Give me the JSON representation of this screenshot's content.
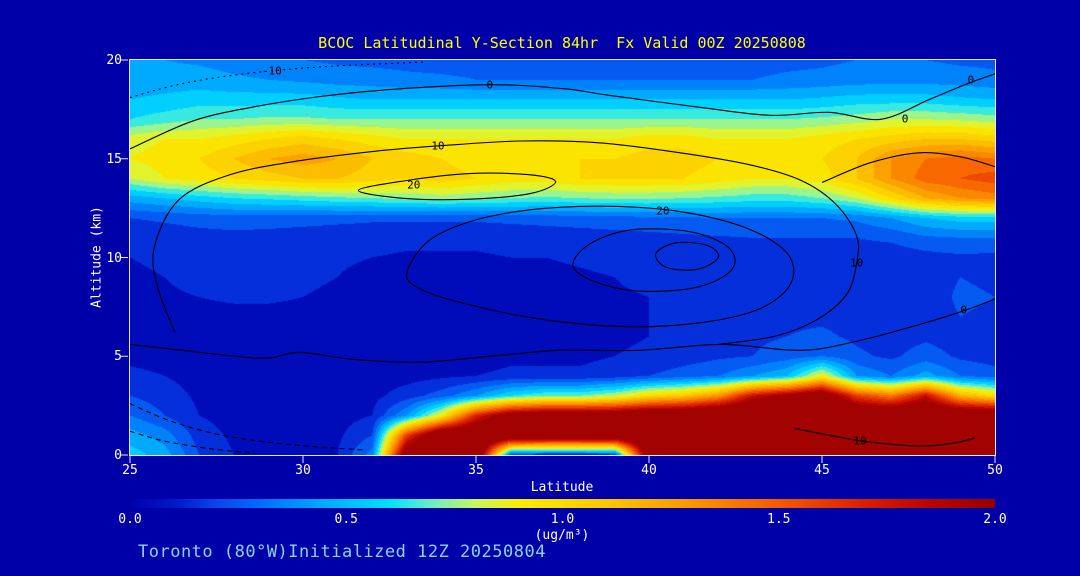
{
  "title": "BCOC Latitudinal Y-Section 84hr  Fx Valid 00Z 20250808",
  "caption": "Toronto (80°W)Initialized 12Z 20250804",
  "colors": {
    "background": "#0000a8",
    "title_text": "#ffff00",
    "axis_text": "#ffffff",
    "caption_text": "#85d6f2",
    "contour_line": "#000000",
    "surface_max_fill": "#960000"
  },
  "axes": {
    "x": {
      "label": "Latitude",
      "min": 25,
      "max": 50,
      "ticks": [
        25,
        30,
        35,
        40,
        45,
        50
      ]
    },
    "y": {
      "label": "Altitude (km)",
      "min": 0,
      "max": 20,
      "ticks": [
        0,
        5,
        10,
        15,
        20
      ]
    }
  },
  "colorbar": {
    "min": 0,
    "max": 2,
    "units": "(ug/m³)",
    "ticks": [
      {
        "label": "0.0",
        "value": 0
      },
      {
        "label": "0.5",
        "value": 0.5
      },
      {
        "label": "1.0",
        "value": 1
      },
      {
        "label": "1.5",
        "value": 1.5
      },
      {
        "label": "2.0",
        "value": 2
      }
    ]
  },
  "chart_data": {
    "type": "heatmap",
    "title": "BCOC Latitudinal Y-Section 84hr  Fx Valid 00Z 20250808",
    "x_label": "Latitude",
    "y_label": "Altitude (km)",
    "x_range": [
      25,
      50
    ],
    "y_range": [
      0,
      20
    ],
    "fill_units": "ug/m3",
    "fill_range": [
      0,
      2
    ],
    "lat": [
      25,
      26,
      27,
      28,
      29,
      30,
      31,
      32,
      33,
      34,
      35,
      36,
      37,
      38,
      39,
      40,
      41,
      42,
      43,
      44,
      45,
      46,
      47,
      48,
      49,
      50
    ],
    "alt_km": [
      0,
      1,
      2,
      3,
      4,
      5,
      6,
      7,
      8,
      9,
      10,
      11,
      12,
      13,
      14,
      15,
      16,
      17,
      18,
      19,
      20
    ],
    "values": [
      [
        0.55,
        0.45,
        0.2,
        0.1,
        0.08,
        0.08,
        0.1,
        0.35,
        2.2,
        2.3,
        2.3,
        0.2,
        0.12,
        0.12,
        0.15,
        2.2,
        2.4,
        2.4,
        2.4,
        2.5,
        2.4,
        2.4,
        2.3,
        2.3,
        2.3,
        2.3
      ],
      [
        0.45,
        0.35,
        0.15,
        0.08,
        0.06,
        0.06,
        0.08,
        0.2,
        1.6,
        2.3,
        2.3,
        2.3,
        2.3,
        2.3,
        2.3,
        2.3,
        2.4,
        2.4,
        2.4,
        2.5,
        2.5,
        2.4,
        2.3,
        2.3,
        2.3,
        2.3
      ],
      [
        0.3,
        0.2,
        0.1,
        0.06,
        0.05,
        0.05,
        0.06,
        0.1,
        0.4,
        0.9,
        1.7,
        2.1,
        2.2,
        2.2,
        2.2,
        2.3,
        2.3,
        2.4,
        2.4,
        2.4,
        2.4,
        2.3,
        2.3,
        2.3,
        2.3,
        2.3
      ],
      [
        0.2,
        0.15,
        0.08,
        0.05,
        0.04,
        0.04,
        0.05,
        0.07,
        0.15,
        0.25,
        0.4,
        0.6,
        0.7,
        0.7,
        0.8,
        1.0,
        1.1,
        1.3,
        1.8,
        2.0,
        2.2,
        1.6,
        1.4,
        1.8,
        1.2,
        1.0
      ],
      [
        0.12,
        0.1,
        0.06,
        0.04,
        0.03,
        0.03,
        0.04,
        0.05,
        0.06,
        0.08,
        0.1,
        0.12,
        0.12,
        0.12,
        0.15,
        0.2,
        0.25,
        0.3,
        0.4,
        0.5,
        0.9,
        0.4,
        0.3,
        0.45,
        0.3,
        0.25
      ],
      [
        0.08,
        0.07,
        0.05,
        0.03,
        0.03,
        0.03,
        0.03,
        0.04,
        0.05,
        0.05,
        0.06,
        0.08,
        0.08,
        0.08,
        0.1,
        0.12,
        0.15,
        0.18,
        0.2,
        0.25,
        0.3,
        0.22,
        0.18,
        0.25,
        0.18,
        0.15
      ],
      [
        0.06,
        0.06,
        0.05,
        0.04,
        0.04,
        0.04,
        0.04,
        0.04,
        0.05,
        0.05,
        0.05,
        0.06,
        0.06,
        0.07,
        0.08,
        0.1,
        0.12,
        0.15,
        0.18,
        0.2,
        0.22,
        0.18,
        0.15,
        0.18,
        0.15,
        0.12
      ],
      [
        0.06,
        0.06,
        0.06,
        0.06,
        0.06,
        0.06,
        0.05,
        0.05,
        0.05,
        0.05,
        0.05,
        0.06,
        0.06,
        0.07,
        0.08,
        0.1,
        0.12,
        0.15,
        0.17,
        0.18,
        0.18,
        0.16,
        0.14,
        0.15,
        0.2,
        0.18
      ],
      [
        0.07,
        0.08,
        0.1,
        0.12,
        0.12,
        0.1,
        0.08,
        0.06,
        0.06,
        0.06,
        0.06,
        0.06,
        0.07,
        0.08,
        0.09,
        0.1,
        0.12,
        0.15,
        0.16,
        0.17,
        0.17,
        0.15,
        0.13,
        0.14,
        0.22,
        0.2
      ],
      [
        0.08,
        0.1,
        0.14,
        0.16,
        0.15,
        0.12,
        0.1,
        0.08,
        0.07,
        0.07,
        0.07,
        0.07,
        0.08,
        0.09,
        0.1,
        0.12,
        0.14,
        0.16,
        0.17,
        0.17,
        0.16,
        0.14,
        0.13,
        0.15,
        0.2,
        0.18
      ],
      [
        0.1,
        0.12,
        0.15,
        0.17,
        0.16,
        0.13,
        0.11,
        0.1,
        0.09,
        0.09,
        0.09,
        0.1,
        0.1,
        0.11,
        0.12,
        0.14,
        0.16,
        0.17,
        0.18,
        0.18,
        0.17,
        0.15,
        0.14,
        0.16,
        0.18,
        0.17
      ],
      [
        0.12,
        0.14,
        0.16,
        0.17,
        0.16,
        0.15,
        0.14,
        0.13,
        0.12,
        0.12,
        0.12,
        0.13,
        0.14,
        0.15,
        0.16,
        0.17,
        0.18,
        0.19,
        0.2,
        0.2,
        0.2,
        0.2,
        0.22,
        0.28,
        0.3,
        0.3
      ],
      [
        0.2,
        0.22,
        0.24,
        0.25,
        0.25,
        0.24,
        0.23,
        0.22,
        0.22,
        0.22,
        0.22,
        0.23,
        0.24,
        0.25,
        0.26,
        0.27,
        0.28,
        0.3,
        0.3,
        0.3,
        0.3,
        0.32,
        0.4,
        0.5,
        0.55,
        0.55
      ],
      [
        0.45,
        0.5,
        0.55,
        0.6,
        0.62,
        0.65,
        0.68,
        0.7,
        0.72,
        0.75,
        0.72,
        0.7,
        0.68,
        0.7,
        0.72,
        0.72,
        0.7,
        0.68,
        0.65,
        0.65,
        0.7,
        0.8,
        1.0,
        1.2,
        1.3,
        1.35
      ],
      [
        0.8,
        0.9,
        0.95,
        1.0,
        1.05,
        1.1,
        1.1,
        1.05,
        1.0,
        1.05,
        1.0,
        0.95,
        0.95,
        1.0,
        1.0,
        1.0,
        1.0,
        0.95,
        0.9,
        0.9,
        0.95,
        1.1,
        1.3,
        1.45,
        1.5,
        1.55
      ],
      [
        0.9,
        0.95,
        1.0,
        1.1,
        1.2,
        1.25,
        1.2,
        1.1,
        1.05,
        1.0,
        0.95,
        0.95,
        1.0,
        1.0,
        1.0,
        1.05,
        1.05,
        1.0,
        0.95,
        0.95,
        1.0,
        1.1,
        1.3,
        1.4,
        1.45,
        1.4
      ],
      [
        0.85,
        0.9,
        0.9,
        0.95,
        1.0,
        1.05,
        1.0,
        0.95,
        0.9,
        0.9,
        0.9,
        0.9,
        0.9,
        0.9,
        0.9,
        0.95,
        0.95,
        0.9,
        0.9,
        0.9,
        0.95,
        1.0,
        1.05,
        1.1,
        1.1,
        1.05
      ],
      [
        0.6,
        0.65,
        0.7,
        0.7,
        0.72,
        0.72,
        0.7,
        0.7,
        0.7,
        0.7,
        0.7,
        0.7,
        0.7,
        0.7,
        0.7,
        0.7,
        0.7,
        0.7,
        0.7,
        0.7,
        0.72,
        0.75,
        0.8,
        0.8,
        0.78,
        0.75
      ],
      [
        0.5,
        0.52,
        0.55,
        0.55,
        0.55,
        0.55,
        0.52,
        0.5,
        0.5,
        0.5,
        0.5,
        0.5,
        0.5,
        0.5,
        0.5,
        0.5,
        0.5,
        0.5,
        0.5,
        0.5,
        0.52,
        0.55,
        0.55,
        0.55,
        0.52,
        0.5
      ],
      [
        0.45,
        0.45,
        0.45,
        0.42,
        0.4,
        0.38,
        0.36,
        0.35,
        0.33,
        0.32,
        0.3,
        0.3,
        0.3,
        0.3,
        0.3,
        0.3,
        0.3,
        0.3,
        0.3,
        0.32,
        0.33,
        0.35,
        0.36,
        0.36,
        0.35,
        0.33
      ],
      [
        0.42,
        0.4,
        0.38,
        0.35,
        0.32,
        0.3,
        0.28,
        0.27,
        0.26,
        0.25,
        0.25,
        0.25,
        0.25,
        0.25,
        0.25,
        0.25,
        0.25,
        0.25,
        0.26,
        0.27,
        0.28,
        0.3,
        0.3,
        0.3,
        0.28,
        0.27
      ]
    ],
    "colormap_stops": [
      [
        0.0,
        "#0000aa"
      ],
      [
        0.1,
        "#0018c8"
      ],
      [
        0.2,
        "#0a46eb"
      ],
      [
        0.3,
        "#006ef9"
      ],
      [
        0.45,
        "#00aaff"
      ],
      [
        0.6,
        "#00e1ff"
      ],
      [
        0.7,
        "#6ef0be"
      ],
      [
        0.8,
        "#c8f85a"
      ],
      [
        0.9,
        "#faee00"
      ],
      [
        1.1,
        "#fcc800"
      ],
      [
        1.3,
        "#fc9600"
      ],
      [
        1.5,
        "#f55a00"
      ],
      [
        1.7,
        "#da1e00"
      ],
      [
        1.85,
        "#b90500"
      ],
      [
        2.0,
        "#960000"
      ]
    ],
    "contours": [
      {
        "level": -10,
        "dash": "2,4",
        "closed": false,
        "points": [
          [
            25,
            18.1
          ],
          [
            26.5,
            18.8
          ],
          [
            28.3,
            19.3
          ],
          [
            30.5,
            19.65
          ],
          [
            33.5,
            19.9
          ]
        ]
      },
      {
        "level": 0,
        "closed": false,
        "points": [
          [
            25,
            15.5
          ],
          [
            26.8,
            16.9
          ],
          [
            28.5,
            17.6
          ],
          [
            30.5,
            18.15
          ],
          [
            32.5,
            18.5
          ],
          [
            35.4,
            18.75
          ],
          [
            37.5,
            18.55
          ],
          [
            38.9,
            18.2
          ],
          [
            41.5,
            17.6
          ],
          [
            43.5,
            17.2
          ],
          [
            45.2,
            17.35
          ],
          [
            46.7,
            17.0
          ],
          [
            48.1,
            18.0
          ],
          [
            49.2,
            18.8
          ],
          [
            50,
            19.3
          ]
        ]
      },
      {
        "level": 10,
        "closed": false,
        "points": [
          [
            26.3,
            6.2
          ],
          [
            25.8,
            8.5
          ],
          [
            25.7,
            10.5
          ],
          [
            26.4,
            12.9
          ],
          [
            27.9,
            14.2
          ],
          [
            29.9,
            14.9
          ],
          [
            32.2,
            15.4
          ],
          [
            33.9,
            15.65
          ],
          [
            36.3,
            15.9
          ],
          [
            38.6,
            15.8
          ],
          [
            40.9,
            15.3
          ],
          [
            42.9,
            14.7
          ],
          [
            44.4,
            13.9
          ],
          [
            45.4,
            12.7
          ],
          [
            46.0,
            11.1
          ],
          [
            46.0,
            9.7
          ],
          [
            45.7,
            8.1
          ],
          [
            44.8,
            6.8
          ],
          [
            43.6,
            6.0
          ],
          [
            42.0,
            5.6
          ]
        ]
      },
      {
        "level": 20,
        "closed": true,
        "points": [
          [
            31.6,
            13.4
          ],
          [
            33.0,
            13.9
          ],
          [
            34.8,
            14.25
          ],
          [
            36.5,
            14.2
          ],
          [
            37.3,
            13.85
          ],
          [
            36.6,
            13.25
          ],
          [
            34.8,
            12.95
          ],
          [
            32.9,
            13.0
          ]
        ]
      },
      {
        "level": 20,
        "closed": true,
        "points": [
          [
            33.0,
            9.2
          ],
          [
            33.6,
            10.8
          ],
          [
            34.8,
            11.8
          ],
          [
            36.5,
            12.4
          ],
          [
            38.6,
            12.6
          ],
          [
            40.8,
            12.35
          ],
          [
            42.8,
            11.5
          ],
          [
            44.0,
            10.2
          ],
          [
            44.1,
            8.7
          ],
          [
            43.2,
            7.4
          ],
          [
            41.5,
            6.7
          ],
          [
            39.3,
            6.5
          ],
          [
            36.8,
            6.9
          ],
          [
            34.6,
            7.7
          ],
          [
            33.4,
            8.4
          ]
        ]
      },
      {
        "level": null,
        "closed": true,
        "points": [
          [
            37.8,
            9.6
          ],
          [
            38.3,
            10.7
          ],
          [
            39.5,
            11.4
          ],
          [
            41.2,
            11.3
          ],
          [
            42.3,
            10.5
          ],
          [
            42.4,
            9.4
          ],
          [
            41.4,
            8.5
          ],
          [
            39.7,
            8.3
          ],
          [
            38.4,
            8.8
          ]
        ]
      },
      {
        "level": null,
        "closed": true,
        "points": [
          [
            40.2,
            10.2
          ],
          [
            40.8,
            10.75
          ],
          [
            41.7,
            10.6
          ],
          [
            42.0,
            10.0
          ],
          [
            41.4,
            9.4
          ],
          [
            40.5,
            9.5
          ]
        ]
      },
      {
        "level": 0,
        "closed": false,
        "points": [
          [
            25,
            5.6
          ],
          [
            26.5,
            5.3
          ],
          [
            28.8,
            4.9
          ],
          [
            29.9,
            5.2
          ],
          [
            31.4,
            4.85
          ],
          [
            33.4,
            4.7
          ],
          [
            35.7,
            5.05
          ],
          [
            37.4,
            5.3
          ],
          [
            39.7,
            5.3
          ],
          [
            42.1,
            5.6
          ],
          [
            44.4,
            5.3
          ],
          [
            46.1,
            5.8
          ],
          [
            47.8,
            6.6
          ],
          [
            49.1,
            7.3
          ],
          [
            50,
            7.9
          ]
        ]
      },
      {
        "level": null,
        "dash": "5,4",
        "closed": false,
        "points": [
          [
            25,
            2.6
          ],
          [
            26.2,
            1.7
          ],
          [
            27.8,
            0.95
          ],
          [
            29.8,
            0.5
          ],
          [
            31.8,
            0.25
          ]
        ]
      },
      {
        "level": null,
        "dash": "5,4",
        "closed": false,
        "points": [
          [
            25,
            1.2
          ],
          [
            26.0,
            0.7
          ],
          [
            27.4,
            0.3
          ],
          [
            28.6,
            0.1
          ]
        ]
      },
      {
        "level": 10,
        "closed": false,
        "points": [
          [
            44.2,
            1.35
          ],
          [
            45.5,
            0.9
          ],
          [
            46.4,
            0.65
          ],
          [
            47.8,
            0.45
          ],
          [
            48.8,
            0.6
          ],
          [
            49.4,
            0.85
          ]
        ]
      },
      {
        "level": null,
        "closed": false,
        "points": [
          [
            45.0,
            13.8
          ],
          [
            46.4,
            14.8
          ],
          [
            47.8,
            15.3
          ],
          [
            49.0,
            15.1
          ],
          [
            50,
            14.6
          ]
        ]
      }
    ],
    "contour_labels": [
      {
        "text": "-10",
        "lat": 29.1,
        "alt": 19.45
      },
      {
        "text": "0",
        "lat": 35.4,
        "alt": 18.75
      },
      {
        "text": "0",
        "lat": 47.4,
        "alt": 17.0
      },
      {
        "text": "0",
        "lat": 49.3,
        "alt": 19.0
      },
      {
        "text": "10",
        "lat": 33.9,
        "alt": 15.65
      },
      {
        "text": "20",
        "lat": 33.2,
        "alt": 13.65
      },
      {
        "text": "20",
        "lat": 40.4,
        "alt": 12.35
      },
      {
        "text": "10",
        "lat": 46.0,
        "alt": 9.7
      },
      {
        "text": "0",
        "lat": 49.1,
        "alt": 7.35
      },
      {
        "text": "10",
        "lat": 46.1,
        "alt": 0.72
      }
    ]
  }
}
